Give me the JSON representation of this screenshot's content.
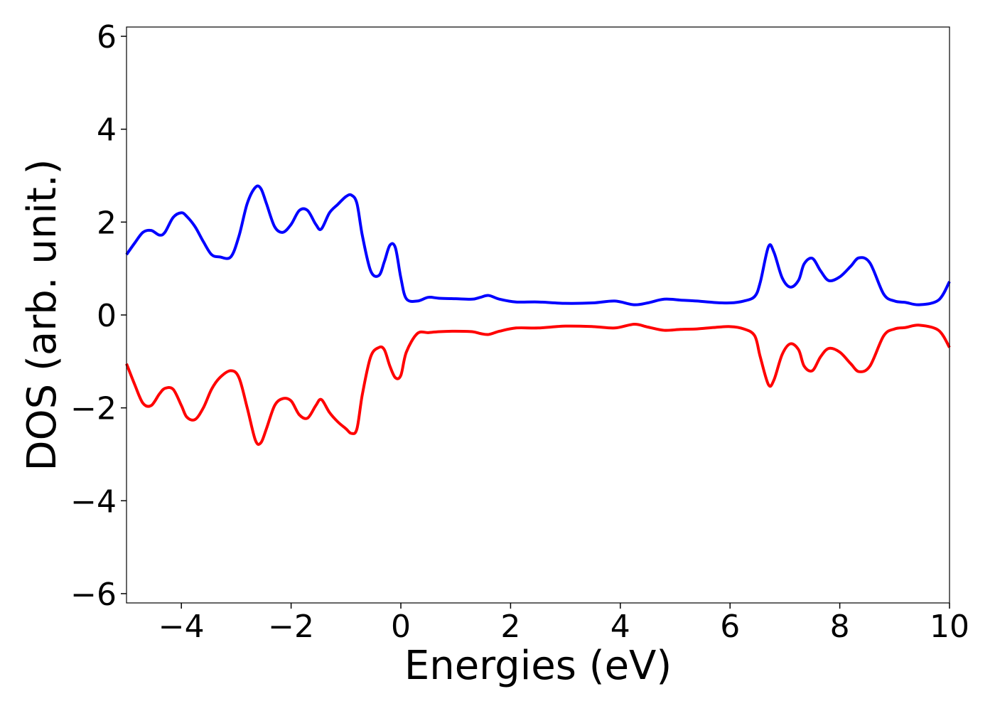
{
  "chart_data": {
    "type": "line",
    "title": "",
    "xlabel": "Energies (eV)",
    "ylabel": "DOS (arb. unit.)",
    "xlim": [
      -5,
      10
    ],
    "ylim": [
      -6.2,
      6.2
    ],
    "x_ticks": [
      -4,
      -2,
      0,
      2,
      4,
      6,
      8,
      10
    ],
    "x_tick_labels": [
      "−4",
      "−2",
      "0",
      "2",
      "4",
      "6",
      "8",
      "10"
    ],
    "y_ticks": [
      -6,
      -4,
      -2,
      0,
      2,
      4,
      6
    ],
    "y_tick_labels": [
      "−6",
      "−4",
      "−2",
      "0",
      "2",
      "4",
      "6"
    ],
    "grid": false,
    "series": [
      {
        "color": "#0000ff",
        "x": [
          -5.0,
          -4.85,
          -4.7,
          -4.55,
          -4.4,
          -4.3,
          -4.15,
          -4.0,
          -3.9,
          -3.75,
          -3.6,
          -3.45,
          -3.3,
          -3.1,
          -2.95,
          -2.8,
          -2.65,
          -2.55,
          -2.45,
          -2.3,
          -2.15,
          -2.0,
          -1.85,
          -1.7,
          -1.55,
          -1.45,
          -1.3,
          -1.15,
          -1.0,
          -0.9,
          -0.8,
          -0.7,
          -0.55,
          -0.4,
          -0.3,
          -0.2,
          -0.1,
          0.0,
          0.1,
          0.3,
          0.5,
          0.7,
          1.0,
          1.3,
          1.45,
          1.6,
          1.8,
          2.1,
          2.5,
          3.0,
          3.5,
          3.9,
          4.25,
          4.5,
          4.8,
          5.1,
          5.4,
          5.7,
          6.0,
          6.25,
          6.45,
          6.55,
          6.7,
          6.8,
          6.95,
          7.1,
          7.25,
          7.35,
          7.5,
          7.65,
          7.8,
          8.0,
          8.2,
          8.35,
          8.55,
          8.8,
          9.0,
          9.2,
          9.45,
          9.8,
          10.0
        ],
        "y": [
          1.3,
          1.55,
          1.78,
          1.82,
          1.72,
          1.78,
          2.1,
          2.2,
          2.12,
          1.9,
          1.58,
          1.3,
          1.25,
          1.25,
          1.7,
          2.4,
          2.75,
          2.72,
          2.4,
          1.9,
          1.78,
          1.95,
          2.25,
          2.25,
          1.95,
          1.85,
          2.2,
          2.38,
          2.55,
          2.58,
          2.4,
          1.7,
          0.95,
          0.85,
          1.15,
          1.5,
          1.45,
          0.8,
          0.35,
          0.3,
          0.38,
          0.36,
          0.35,
          0.34,
          0.38,
          0.42,
          0.34,
          0.28,
          0.28,
          0.25,
          0.26,
          0.3,
          0.22,
          0.26,
          0.34,
          0.32,
          0.3,
          0.27,
          0.26,
          0.3,
          0.4,
          0.7,
          1.47,
          1.35,
          0.8,
          0.6,
          0.75,
          1.1,
          1.22,
          0.95,
          0.74,
          0.82,
          1.05,
          1.23,
          1.12,
          0.45,
          0.3,
          0.27,
          0.22,
          0.32,
          0.72
        ]
      },
      {
        "color": "#ff0000",
        "x": [
          -5.0,
          -4.85,
          -4.7,
          -4.55,
          -4.4,
          -4.3,
          -4.15,
          -4.0,
          -3.9,
          -3.75,
          -3.6,
          -3.45,
          -3.3,
          -3.1,
          -2.95,
          -2.8,
          -2.65,
          -2.55,
          -2.45,
          -2.3,
          -2.15,
          -2.0,
          -1.85,
          -1.7,
          -1.55,
          -1.45,
          -1.3,
          -1.15,
          -1.0,
          -0.9,
          -0.8,
          -0.7,
          -0.55,
          -0.4,
          -0.3,
          -0.2,
          -0.1,
          0.0,
          0.1,
          0.3,
          0.5,
          0.7,
          1.0,
          1.3,
          1.45,
          1.6,
          1.8,
          2.1,
          2.5,
          3.0,
          3.5,
          3.9,
          4.25,
          4.5,
          4.8,
          5.1,
          5.4,
          5.7,
          6.0,
          6.25,
          6.45,
          6.55,
          6.7,
          6.8,
          6.95,
          7.1,
          7.25,
          7.35,
          7.5,
          7.65,
          7.8,
          8.0,
          8.2,
          8.35,
          8.55,
          8.8,
          9.0,
          9.2,
          9.45,
          9.8,
          10.0
        ],
        "y": [
          -1.05,
          -1.5,
          -1.9,
          -1.95,
          -1.7,
          -1.58,
          -1.6,
          -1.95,
          -2.2,
          -2.25,
          -2.0,
          -1.6,
          -1.35,
          -1.2,
          -1.35,
          -2.0,
          -2.7,
          -2.75,
          -2.45,
          -1.95,
          -1.8,
          -1.85,
          -2.15,
          -2.22,
          -1.95,
          -1.82,
          -2.1,
          -2.3,
          -2.45,
          -2.55,
          -2.45,
          -1.7,
          -0.9,
          -0.7,
          -0.75,
          -1.1,
          -1.35,
          -1.3,
          -0.8,
          -0.4,
          -0.38,
          -0.36,
          -0.35,
          -0.36,
          -0.4,
          -0.42,
          -0.35,
          -0.28,
          -0.28,
          -0.24,
          -0.25,
          -0.28,
          -0.2,
          -0.26,
          -0.33,
          -0.31,
          -0.3,
          -0.27,
          -0.25,
          -0.3,
          -0.45,
          -0.9,
          -1.5,
          -1.4,
          -0.85,
          -0.62,
          -0.75,
          -1.1,
          -1.2,
          -0.9,
          -0.72,
          -0.8,
          -1.05,
          -1.22,
          -1.1,
          -0.45,
          -0.3,
          -0.27,
          -0.22,
          -0.33,
          -0.7
        ]
      }
    ]
  }
}
